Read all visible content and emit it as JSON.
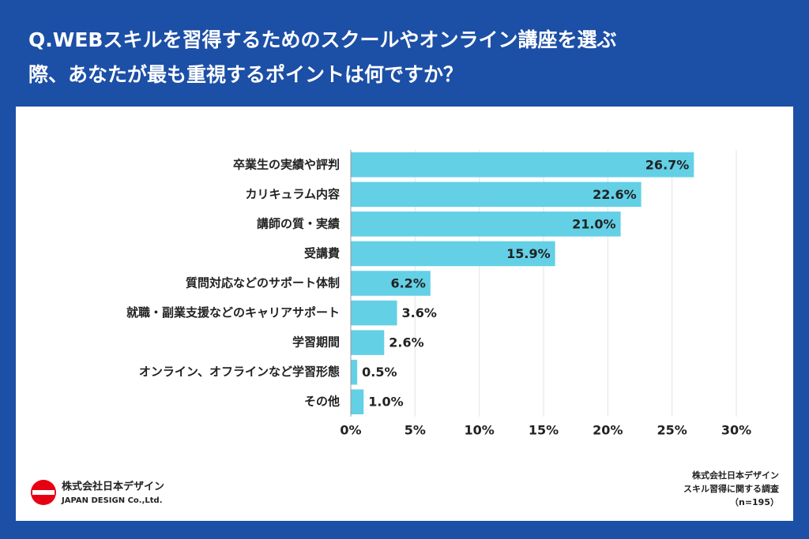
{
  "chart_data": {
    "type": "barh",
    "title": [
      "Q.WEBスキルを習得するためのスクールやオンライン講座を選ぶ",
      "際、あなたが最も重視するポイントは何ですか？"
    ],
    "categories": [
      "卒業生の実績や評判",
      "カリキュラム内容",
      "講師の質・実績",
      "受講費",
      "質問対応などのサポート体制",
      "就職・副業支援などのキャリアサポート",
      "学習期間",
      "オンライン、オフラインなど学習形態",
      "その他"
    ],
    "values": [
      26.7,
      22.6,
      21.0,
      15.9,
      6.2,
      3.6,
      2.6,
      0.5,
      1.0
    ],
    "value_labels": [
      "26.7%",
      "22.6%",
      "21.0%",
      "15.9%",
      "6.2%",
      "3.6%",
      "2.6%",
      "0.5%",
      "1.0%"
    ],
    "color": "#63d0e6",
    "xlim": [
      0,
      30
    ],
    "xticks": [
      {
        "value": 0,
        "label": "0%"
      },
      {
        "value": 5,
        "label": "5%"
      },
      {
        "value": 10,
        "label": "10%"
      },
      {
        "value": 15,
        "label": "15%"
      },
      {
        "value": 20,
        "label": "20%"
      },
      {
        "value": 25,
        "label": "25%"
      },
      {
        "value": 30,
        "label": "30%"
      }
    ],
    "grid": true
  },
  "logo": {
    "name": "株式会社日本デザイン",
    "english": "JAPAN DESIGN Co.,Ltd."
  },
  "source": [
    "株式会社日本デザイン",
    "スキル習得に関する調査",
    "（n=195）"
  ]
}
